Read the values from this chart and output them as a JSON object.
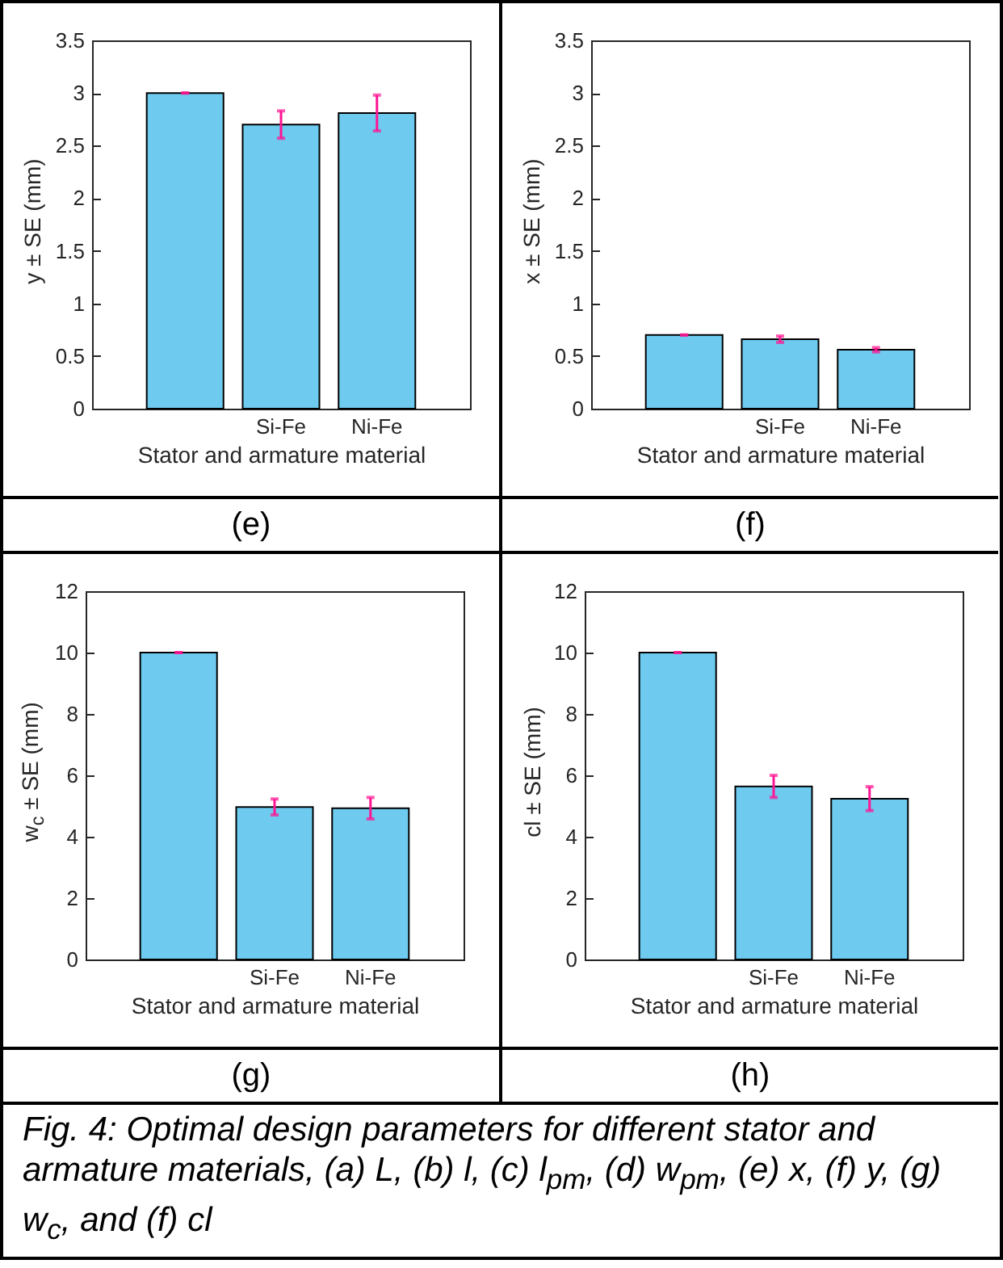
{
  "chart_data": [
    {
      "type": "bar",
      "title": "(e)",
      "xlabel": "Stator and armature material",
      "ylabel": "y ± SE (mm)",
      "categories": [
        null,
        "Si-Fe",
        "Ni-Fe"
      ],
      "series": [
        {
          "color": "#6ecbef",
          "values": [
            3.0,
            2.7,
            2.81
          ],
          "errors": [
            0,
            0.13,
            0.17
          ]
        }
      ],
      "ylim": [
        0,
        3.5
      ],
      "yticks": [
        0,
        0.5,
        1,
        1.5,
        2,
        2.5,
        3,
        3.5
      ]
    },
    {
      "type": "bar",
      "title": "(f)",
      "xlabel": "Stator and armature material",
      "ylabel": "x ± SE (mm)",
      "categories": [
        null,
        "Si-Fe",
        "Ni-Fe"
      ],
      "series": [
        {
          "color": "#6ecbef",
          "values": [
            0.7,
            0.66,
            0.56
          ],
          "errors": [
            0,
            0.03,
            0.02
          ]
        }
      ],
      "ylim": [
        0,
        3.5
      ],
      "yticks": [
        0,
        0.5,
        1,
        1.5,
        2,
        2.5,
        3,
        3.5
      ]
    },
    {
      "type": "bar",
      "title": "(g)",
      "xlabel": "Stator and armature material",
      "ylabel": "w$_{c}$ ± SE (mm)",
      "categories": [
        null,
        "Si-Fe",
        "Ni-Fe"
      ],
      "series": [
        {
          "color": "#6ecbef",
          "values": [
            10.0,
            4.97,
            4.93
          ],
          "errors": [
            0,
            0.26,
            0.35
          ]
        }
      ],
      "ylim": [
        0,
        12
      ],
      "yticks": [
        0,
        2,
        4,
        6,
        8,
        10,
        12
      ]
    },
    {
      "type": "bar",
      "title": "(h)",
      "xlabel": "Stator and armature material",
      "ylabel": "cl ± SE (mm)",
      "categories": [
        null,
        "Si-Fe",
        "Ni-Fe"
      ],
      "series": [
        {
          "color": "#6ecbef",
          "values": [
            10.0,
            5.64,
            5.24
          ],
          "errors": [
            0,
            0.36,
            0.39
          ]
        }
      ],
      "ylim": [
        0,
        12
      ],
      "yticks": [
        0,
        2,
        4,
        6,
        8,
        10,
        12
      ],
      "annotations": [
        "Fig. 4: Optimal design parameters for different stator and armature materials, (a) L, (b) l, (c) l$_{pm}$, (d) w$_{pm}$, (e) x, (f) y, (g) w$_{c}$, and (f) cl"
      ]
    }
  ]
}
